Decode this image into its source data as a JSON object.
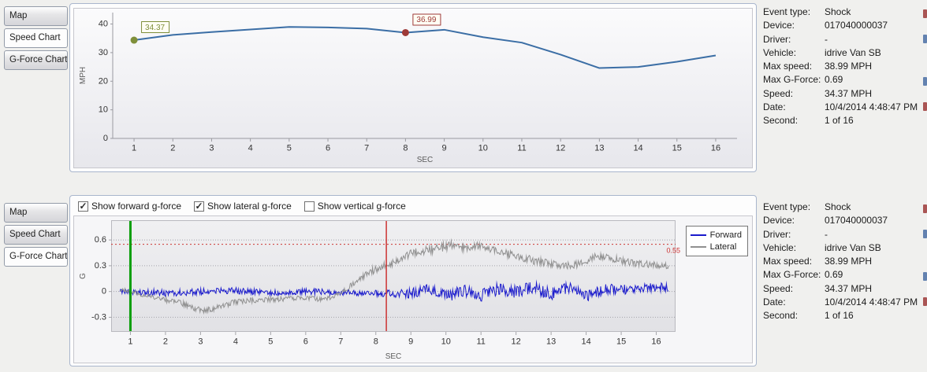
{
  "colors": {
    "page_bg": "#f0f0ee",
    "frame_border": "#a9b6cd",
    "speed_line": "#3b6ea5",
    "marker_start": "#7f8f3a",
    "marker_event": "#9e3a38",
    "forward": "#1a1acc",
    "lateral": "#909090",
    "threshold": "#cc3333",
    "current_second_line": "#0a9e0a",
    "event_line": "#cc3333"
  },
  "tabs": {
    "top": [
      {
        "label": "Map",
        "selected": false
      },
      {
        "label": "Speed Chart",
        "selected": true
      },
      {
        "label": "G-Force Chart",
        "selected": false
      }
    ],
    "bottom": [
      {
        "label": "Map",
        "selected": false
      },
      {
        "label": "Speed Chart",
        "selected": false
      },
      {
        "label": "G-Force Chart",
        "selected": true
      }
    ]
  },
  "gforce_controls": {
    "checkboxes": [
      {
        "label": "Show forward g-force",
        "checked": true
      },
      {
        "label": "Show lateral g-force",
        "checked": true
      },
      {
        "label": "Show vertical g-force",
        "checked": false
      }
    ]
  },
  "info": [
    {
      "label": "Event type:",
      "value": "Shock"
    },
    {
      "label": "Device:",
      "value": "017040000037"
    },
    {
      "label": "Driver:",
      "value": "-"
    },
    {
      "label": "Vehicle:",
      "value": "idrive Van SB"
    },
    {
      "label": "Max speed:",
      "value": "38.99 MPH"
    },
    {
      "label": "Max G-Force:",
      "value": "0.69"
    },
    {
      "label": "Speed:",
      "value": "34.37 MPH"
    },
    {
      "label": "Date:",
      "value": "10/4/2014 4:48:47 PM"
    },
    {
      "label": "Second:",
      "value": "1 of 16"
    }
  ],
  "edge_fragments": [
    {
      "y": 8,
      "color": "#9e3a38"
    },
    {
      "y": 40,
      "color": "#4a6fa5"
    },
    {
      "y": 94,
      "color": "#4a6fa5"
    },
    {
      "y": 126,
      "color": "#9e3a38"
    }
  ],
  "chart_data": [
    {
      "type": "line",
      "title": "Speed",
      "xlabel": "SEC",
      "ylabel": "MPH",
      "x": [
        1,
        2,
        3,
        4,
        5,
        6,
        7,
        8,
        9,
        10,
        11,
        12,
        13,
        14,
        15,
        16
      ],
      "values": [
        34.37,
        36.2,
        37.2,
        38.1,
        38.99,
        38.8,
        38.4,
        36.99,
        38.0,
        35.4,
        33.5,
        29.3,
        24.6,
        25.0,
        26.8,
        29.0
      ],
      "ylim": [
        0,
        44
      ],
      "yticks": [
        0,
        10,
        20,
        30,
        40
      ],
      "line_color": "#3b6ea5",
      "annotations": [
        {
          "x": 1,
          "value": 34.37,
          "label": "34.37",
          "color": "#7f8f3a"
        },
        {
          "x": 8,
          "value": 36.99,
          "label": "36.99",
          "color": "#9e3a38"
        }
      ]
    },
    {
      "type": "line",
      "title": "G-Force",
      "xlabel": "SEC",
      "ylabel": "G",
      "xticks": [
        1,
        2,
        3,
        4,
        5,
        6,
        7,
        8,
        9,
        10,
        11,
        12,
        13,
        14,
        15,
        16
      ],
      "ylim": [
        -0.47,
        0.83
      ],
      "yticks": [
        -0.3,
        0,
        0.3,
        0.6
      ],
      "threshold": {
        "value": 0.55,
        "label": "0.55",
        "color": "#cc3333"
      },
      "vlines": [
        {
          "x": 1,
          "color": "#0a9e0a",
          "width": 3
        },
        {
          "x": 8.3,
          "color": "#cc3333",
          "width": 1.5
        }
      ],
      "series": [
        {
          "name": "Forward",
          "color": "#1a1acc",
          "kx": [
            1,
            2,
            3,
            4,
            5,
            6,
            7,
            8,
            9,
            9.5,
            10,
            10.5,
            11,
            11.5,
            12,
            12.5,
            13,
            13.5,
            14,
            14.5,
            15,
            15.5,
            16
          ],
          "kv": [
            0,
            -0.02,
            0,
            0.01,
            -0.02,
            0,
            -0.01,
            -0.02,
            -0.02,
            0.02,
            -0.06,
            0.01,
            -0.05,
            0.03,
            0,
            0.05,
            -0.03,
            0.05,
            -0.05,
            0.03,
            0.02,
            0.04,
            0.05
          ],
          "ax": [
            1,
            8,
            9,
            10,
            12,
            14,
            16
          ],
          "av": [
            0.04,
            0.035,
            0.06,
            0.07,
            0.075,
            0.07,
            0.05
          ]
        },
        {
          "name": "Lateral",
          "color": "#909090",
          "kx": [
            0.7,
            1,
            1.8,
            2.5,
            3,
            3.4,
            4,
            4.5,
            5.2,
            6,
            6.5,
            7,
            7.4,
            7.8,
            8.2,
            8.6,
            9,
            9.4,
            9.8,
            10.2,
            10.6,
            11,
            11.5,
            12,
            12.5,
            13,
            13.5,
            14,
            14.3,
            14.8,
            15.3,
            16.3
          ],
          "kv": [
            0.02,
            0,
            -0.08,
            -0.14,
            -0.22,
            -0.2,
            -0.12,
            -0.1,
            -0.09,
            -0.07,
            -0.1,
            -0.02,
            0.1,
            0.22,
            0.3,
            0.34,
            0.45,
            0.48,
            0.5,
            0.55,
            0.5,
            0.53,
            0.45,
            0.42,
            0.36,
            0.32,
            0.3,
            0.34,
            0.42,
            0.38,
            0.33,
            0.3
          ],
          "ax": [
            1,
            3,
            7,
            8,
            10,
            13,
            16
          ],
          "av": [
            0.025,
            0.035,
            0.025,
            0.045,
            0.055,
            0.045,
            0.04
          ]
        }
      ]
    }
  ]
}
